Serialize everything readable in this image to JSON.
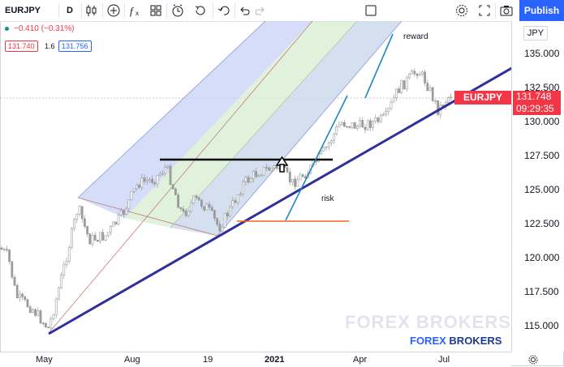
{
  "toolbar": {
    "symbol": "EURJPY",
    "interval": "D",
    "publish_label": "Publish"
  },
  "legend": {
    "change": "−0.410 (−0.31%)",
    "bid": "131.740",
    "spread": "1.6",
    "ask": "131.756"
  },
  "price_axis": {
    "currency": "JPY",
    "labels": [
      "135.000",
      "132.500",
      "130.000",
      "127.500",
      "125.000",
      "122.500",
      "120.000",
      "117.500",
      "115.000"
    ]
  },
  "price_tag": {
    "symbol": "EURJPY",
    "price": "131.748",
    "countdown": "09:29:35"
  },
  "time_axis": {
    "labels": [
      "May",
      "Aug",
      "19",
      "2021",
      "Apr",
      "Jul"
    ]
  },
  "annotations": {
    "reward": "reward",
    "risk": "risk"
  },
  "watermark": {
    "text": "FOREX BROKERS",
    "brand_a": "FOREX",
    "brand_b": "BROKERS"
  },
  "colors": {
    "down": "#f23645",
    "accent": "#2962ff",
    "trendline": "#2f2f9e",
    "pitchfork_blue": "#c7d2f5",
    "pitchfork_green": "#d6ecd0"
  }
}
